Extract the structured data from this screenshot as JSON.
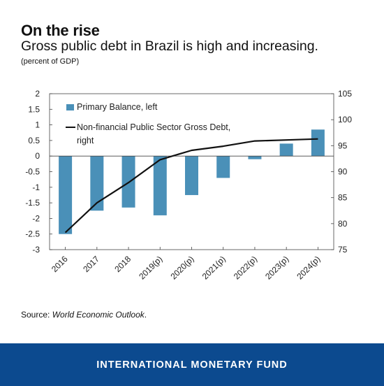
{
  "header": {
    "title": "On the rise",
    "subtitle": "Gross public debt in Brazil is high and increasing.",
    "unit": "(percent of GDP)"
  },
  "source": {
    "prefix": "Source: ",
    "text": "World Economic Outlook",
    "suffix": "."
  },
  "footer": {
    "org": "INTERNATIONAL MONETARY FUND"
  },
  "colors": {
    "bar": "#4a90b8",
    "line": "#111111",
    "footer": "#0c4a8f"
  },
  "chart_data": {
    "type": "bar+line",
    "categories": [
      "2016",
      "2017",
      "2018",
      "2019(p)",
      "2020(p)",
      "2021(p)",
      "2022(p)",
      "2023(p)",
      "2024(p)"
    ],
    "series": [
      {
        "name": "Primary Balance, left",
        "type": "bar",
        "axis": "left",
        "values": [
          -2.5,
          -1.75,
          -1.65,
          -1.9,
          -1.25,
          -0.7,
          -0.1,
          0.4,
          0.85
        ]
      },
      {
        "name": "Non-financial Public Sector Gross Debt, right",
        "type": "line",
        "axis": "right",
        "values": [
          78.3,
          84.0,
          87.9,
          92.3,
          94.1,
          94.9,
          95.9,
          96.1,
          96.3
        ]
      }
    ],
    "legend_labels": {
      "bar": "Primary Balance, left",
      "line1": "Non-financial Public Sector Gross Debt,",
      "line2": "right"
    },
    "left_axis": {
      "ylim": [
        -3,
        2
      ],
      "ticks": [
        "2",
        "1.5",
        "1",
        "0.5",
        "0",
        "-0.5",
        "-1",
        "-1.5",
        "-2",
        "-2.5",
        "-3"
      ]
    },
    "right_axis": {
      "ylim": [
        75,
        105
      ],
      "ticks": [
        "105",
        "100",
        "95",
        "90",
        "85",
        "80",
        "75"
      ]
    },
    "legend_position": "top-left",
    "grid": false
  }
}
